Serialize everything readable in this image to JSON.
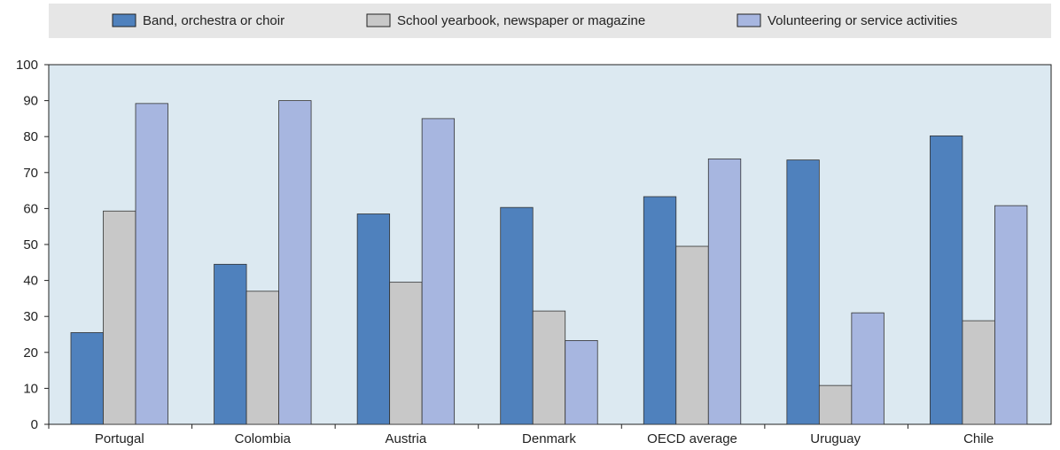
{
  "chart_data": {
    "type": "bar",
    "categories": [
      "Portugal",
      "Colombia",
      "Austria",
      "Denmark",
      "OECD average",
      "Uruguay",
      "Chile"
    ],
    "series": [
      {
        "name": "Band, orchestra or choir",
        "values": [
          25.5,
          44.5,
          58.5,
          60.3,
          63.3,
          73.5,
          80.2
        ]
      },
      {
        "name": "School yearbook, newspaper or magazine",
        "values": [
          59.3,
          37.0,
          39.5,
          31.5,
          49.5,
          10.8,
          28.8
        ]
      },
      {
        "name": "Volunteering or service activities",
        "values": [
          89.2,
          90.0,
          85.0,
          23.3,
          73.8,
          31.0,
          60.8
        ]
      }
    ],
    "ylim": [
      0,
      100
    ],
    "yticks": [
      0,
      10,
      20,
      30,
      40,
      50,
      60,
      70,
      80,
      90,
      100
    ],
    "grid": false,
    "legend": "top",
    "colors": {
      "series": [
        "#4f81bd",
        "#c8c8c8",
        "#a7b6e0"
      ],
      "plot_background": "#dce9f1",
      "legend_background": "#e6e6e6"
    }
  }
}
